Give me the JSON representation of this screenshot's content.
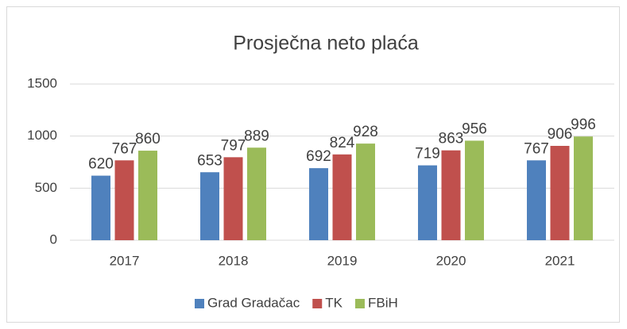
{
  "chart_data": {
    "type": "bar",
    "title": "Prosječna neto plaća",
    "categories": [
      "2017",
      "2018",
      "2019",
      "2020",
      "2021"
    ],
    "series": [
      {
        "name": "Grad Gradačac",
        "color": "#4f81bd",
        "values": [
          620,
          653,
          692,
          719,
          767
        ]
      },
      {
        "name": "TK",
        "color": "#c0504d",
        "values": [
          767,
          797,
          824,
          863,
          906
        ]
      },
      {
        "name": "FBiH",
        "color": "#9bbb59",
        "values": [
          860,
          889,
          928,
          956,
          996
        ]
      }
    ],
    "ylim": [
      0,
      1500
    ],
    "yticks": [
      0,
      500,
      1000,
      1500
    ],
    "grid": true,
    "legend": "bottom"
  }
}
